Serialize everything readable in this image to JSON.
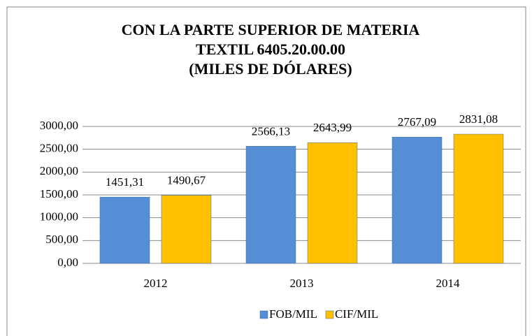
{
  "chart_data": {
    "type": "bar",
    "title": [
      "CON LA PARTE SUPERIOR DE MATERIA",
      "TEXTIL 6405.20.00.00",
      "(MILES DE DÓLARES)"
    ],
    "categories": [
      "2012",
      "2013",
      "2014"
    ],
    "series": [
      {
        "name": "FOB/MIL",
        "color": "#558ed5",
        "values": [
          1451.31,
          2566.13,
          2767.09
        ],
        "value_labels": [
          "1451,31",
          "2566,13",
          "2767,09"
        ]
      },
      {
        "name": "CIF/MIL",
        "color": "#ffc000",
        "values": [
          1490.67,
          2643.99,
          2831.08
        ],
        "value_labels": [
          "1490,67",
          "2643,99",
          "2831,08"
        ]
      }
    ],
    "ylim": [
      0,
      3000
    ],
    "yticks": [
      {
        "value": 0,
        "label": "0,00"
      },
      {
        "value": 500,
        "label": "500,00"
      },
      {
        "value": 1000,
        "label": "1000,00"
      },
      {
        "value": 1500,
        "label": "1500,00"
      },
      {
        "value": 2000,
        "label": "2000,00"
      },
      {
        "value": 2500,
        "label": "2500,00"
      },
      {
        "value": 3000,
        "label": "3000,00"
      }
    ],
    "grid": true,
    "legend": "bottom"
  }
}
